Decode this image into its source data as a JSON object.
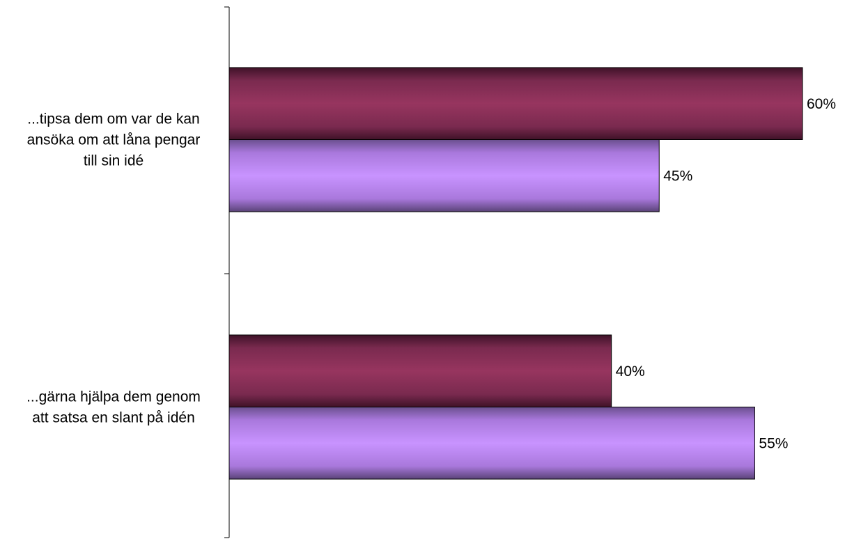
{
  "chart_data": {
    "type": "bar",
    "orientation": "horizontal",
    "categories": [
      [
        "...tipsa dem om var de kan",
        "ansöka om att låna pengar",
        "till sin idé"
      ],
      [
        "...gärna hjälpa dem genom",
        "att satsa en slant på idén"
      ]
    ],
    "series": [
      {
        "values": [
          60,
          40
        ],
        "labels": [
          "60%",
          "40%"
        ],
        "color": "#93325E"
      },
      {
        "values": [
          45,
          55
        ],
        "labels": [
          "45%",
          "55%"
        ],
        "color": "#C893FF"
      }
    ],
    "xlim": [
      0,
      60
    ],
    "grid": false,
    "legend": "none"
  }
}
